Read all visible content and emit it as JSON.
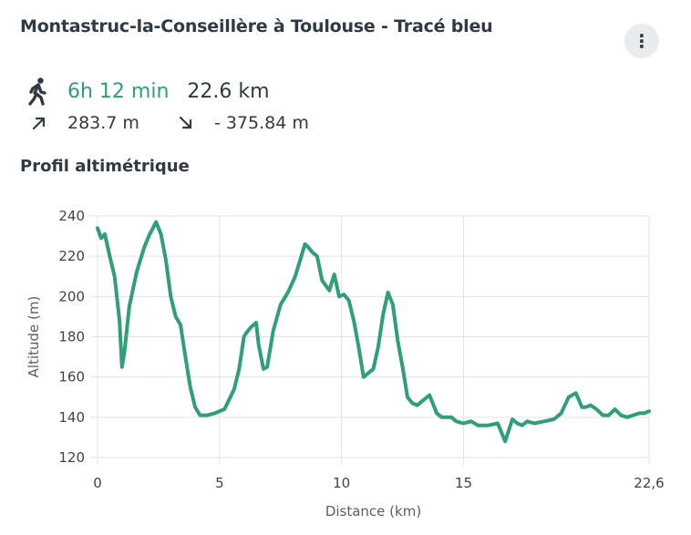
{
  "header": {
    "title": "Montastruc-la-Conseillère à Toulouse - Tracé bleu",
    "menu_icon": "more-vertical-icon",
    "menu_glyph": "⋮"
  },
  "summary": {
    "mode_icon": "walking-person-icon",
    "duration": "6h 12 min",
    "distance": "22.6 km",
    "ascent_icon": "arrow-up-right-icon",
    "ascent": "283.7 m",
    "descent_icon": "arrow-down-right-icon",
    "descent": "- 375.84 m"
  },
  "colors": {
    "accent": "#2e9e7b",
    "text": "#2f3a44",
    "grid": "#e3e3e3"
  },
  "profile": {
    "title": "Profil altimétrique"
  },
  "chart_data": {
    "type": "line",
    "xlabel": "Distance (km)",
    "ylabel": "Altitude (m)",
    "xlim": [
      0,
      22.6
    ],
    "ylim": [
      120,
      240
    ],
    "x_ticks": [
      "0",
      "5",
      "10",
      "15",
      "22,6"
    ],
    "x_tick_values": [
      0,
      5,
      10,
      15,
      22.6
    ],
    "y_ticks": [
      "120",
      "140",
      "160",
      "180",
      "200",
      "220",
      "240"
    ],
    "y_tick_values": [
      120,
      140,
      160,
      180,
      200,
      220,
      240
    ],
    "grid": true,
    "series": [
      {
        "x": [
          0,
          0.15,
          0.3,
          0.5,
          0.7,
          0.9,
          1.0,
          1.1,
          1.3,
          1.6,
          1.9,
          2.1,
          2.4,
          2.6,
          2.8,
          3.0,
          3.2,
          3.4,
          3.6,
          3.8,
          4.0,
          4.2,
          4.5,
          4.8,
          5.0,
          5.2,
          5.4,
          5.6,
          5.8,
          6.0,
          6.1,
          6.3,
          6.5,
          6.6,
          6.8,
          6.95,
          7.2,
          7.5,
          7.8,
          8.1,
          8.3,
          8.5,
          8.6,
          8.8,
          9.0,
          9.2,
          9.5,
          9.7,
          9.9,
          10.1,
          10.3,
          10.5,
          10.7,
          10.9,
          11.1,
          11.3,
          11.5,
          11.7,
          11.9,
          12.1,
          12.3,
          12.5,
          12.7,
          12.9,
          13.1,
          13.3,
          13.6,
          13.9,
          14.1,
          14.3,
          14.5,
          14.7,
          15.0,
          15.3,
          15.6,
          16.0,
          16.4,
          16.7,
          17.0,
          17.2,
          17.4,
          17.6,
          17.9,
          18.3,
          18.7,
          19.0,
          19.3,
          19.6,
          19.85,
          20.0,
          20.2,
          20.45,
          20.7,
          20.95,
          21.2,
          21.45,
          21.7,
          21.95,
          22.2,
          22.4,
          22.6
        ],
        "y": [
          234,
          229,
          231,
          220,
          210,
          188,
          165,
          172,
          195,
          212,
          224,
          230,
          237,
          231,
          218,
          200,
          190,
          186,
          170,
          155,
          145,
          141,
          141,
          142,
          143,
          144,
          149,
          154,
          164,
          180,
          182,
          185,
          187,
          176,
          164,
          165,
          183,
          196,
          202,
          210,
          218,
          226,
          225,
          222,
          220,
          208,
          203,
          211,
          200,
          201,
          198,
          188,
          175,
          160,
          162,
          164,
          175,
          191,
          202,
          196,
          178,
          165,
          150,
          147,
          146,
          148,
          151,
          142,
          140,
          140,
          140,
          138,
          137,
          138,
          136,
          136,
          137,
          128,
          139,
          137,
          136,
          138,
          137,
          138,
          139,
          142,
          150,
          152,
          145,
          145,
          146,
          144,
          141,
          141,
          144,
          141,
          140,
          141,
          142,
          142,
          143
        ]
      }
    ]
  }
}
